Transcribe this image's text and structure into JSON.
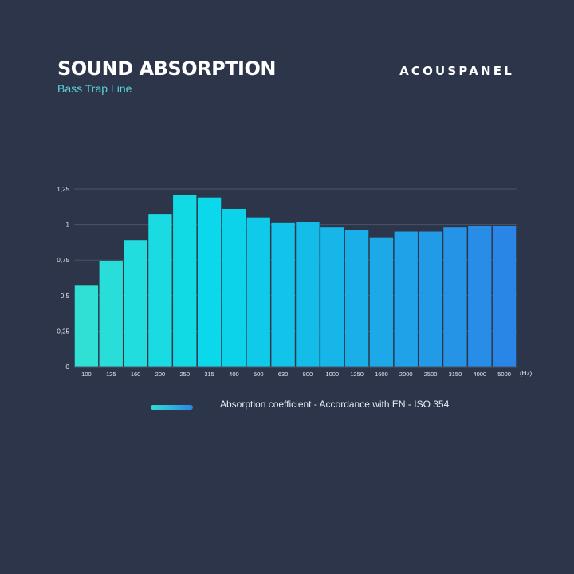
{
  "header": {
    "title": "SOUND ABSORPTION",
    "subtitle": "Bass Trap Line",
    "brand": "ACOUSPANEL"
  },
  "colors": {
    "background": "#2c3549",
    "subtitle": "#5ad3d8",
    "bar_start": "#30e0d4",
    "bar_mid": "#0ad8ea",
    "bar_end": "#2a86e6",
    "gridline": "#4a5468"
  },
  "chart_data": {
    "type": "bar",
    "categories": [
      "100",
      "125",
      "160",
      "200",
      "250",
      "315",
      "400",
      "500",
      "630",
      "800",
      "1000",
      "1250",
      "1600",
      "2000",
      "2500",
      "3150",
      "4000",
      "5000"
    ],
    "series": [
      {
        "name": "Absorption coefficient - Accordance with EN - ISO 354",
        "values": [
          0.57,
          0.74,
          0.89,
          1.07,
          1.21,
          1.19,
          1.11,
          1.05,
          1.01,
          1.02,
          0.98,
          0.96,
          0.91,
          0.95,
          0.95,
          0.98,
          0.99,
          0.99
        ]
      }
    ],
    "x_unit": "(Hz)",
    "y_ticks": [
      {
        "value": 0,
        "label": "0"
      },
      {
        "value": 0.25,
        "label": "0,25"
      },
      {
        "value": 0.5,
        "label": "0,5"
      },
      {
        "value": 0.75,
        "label": "0,75"
      },
      {
        "value": 1,
        "label": "1"
      },
      {
        "value": 1.25,
        "label": "1,25"
      }
    ],
    "ylim": [
      0,
      1.25
    ],
    "grid": true,
    "legend_position": "bottom"
  }
}
